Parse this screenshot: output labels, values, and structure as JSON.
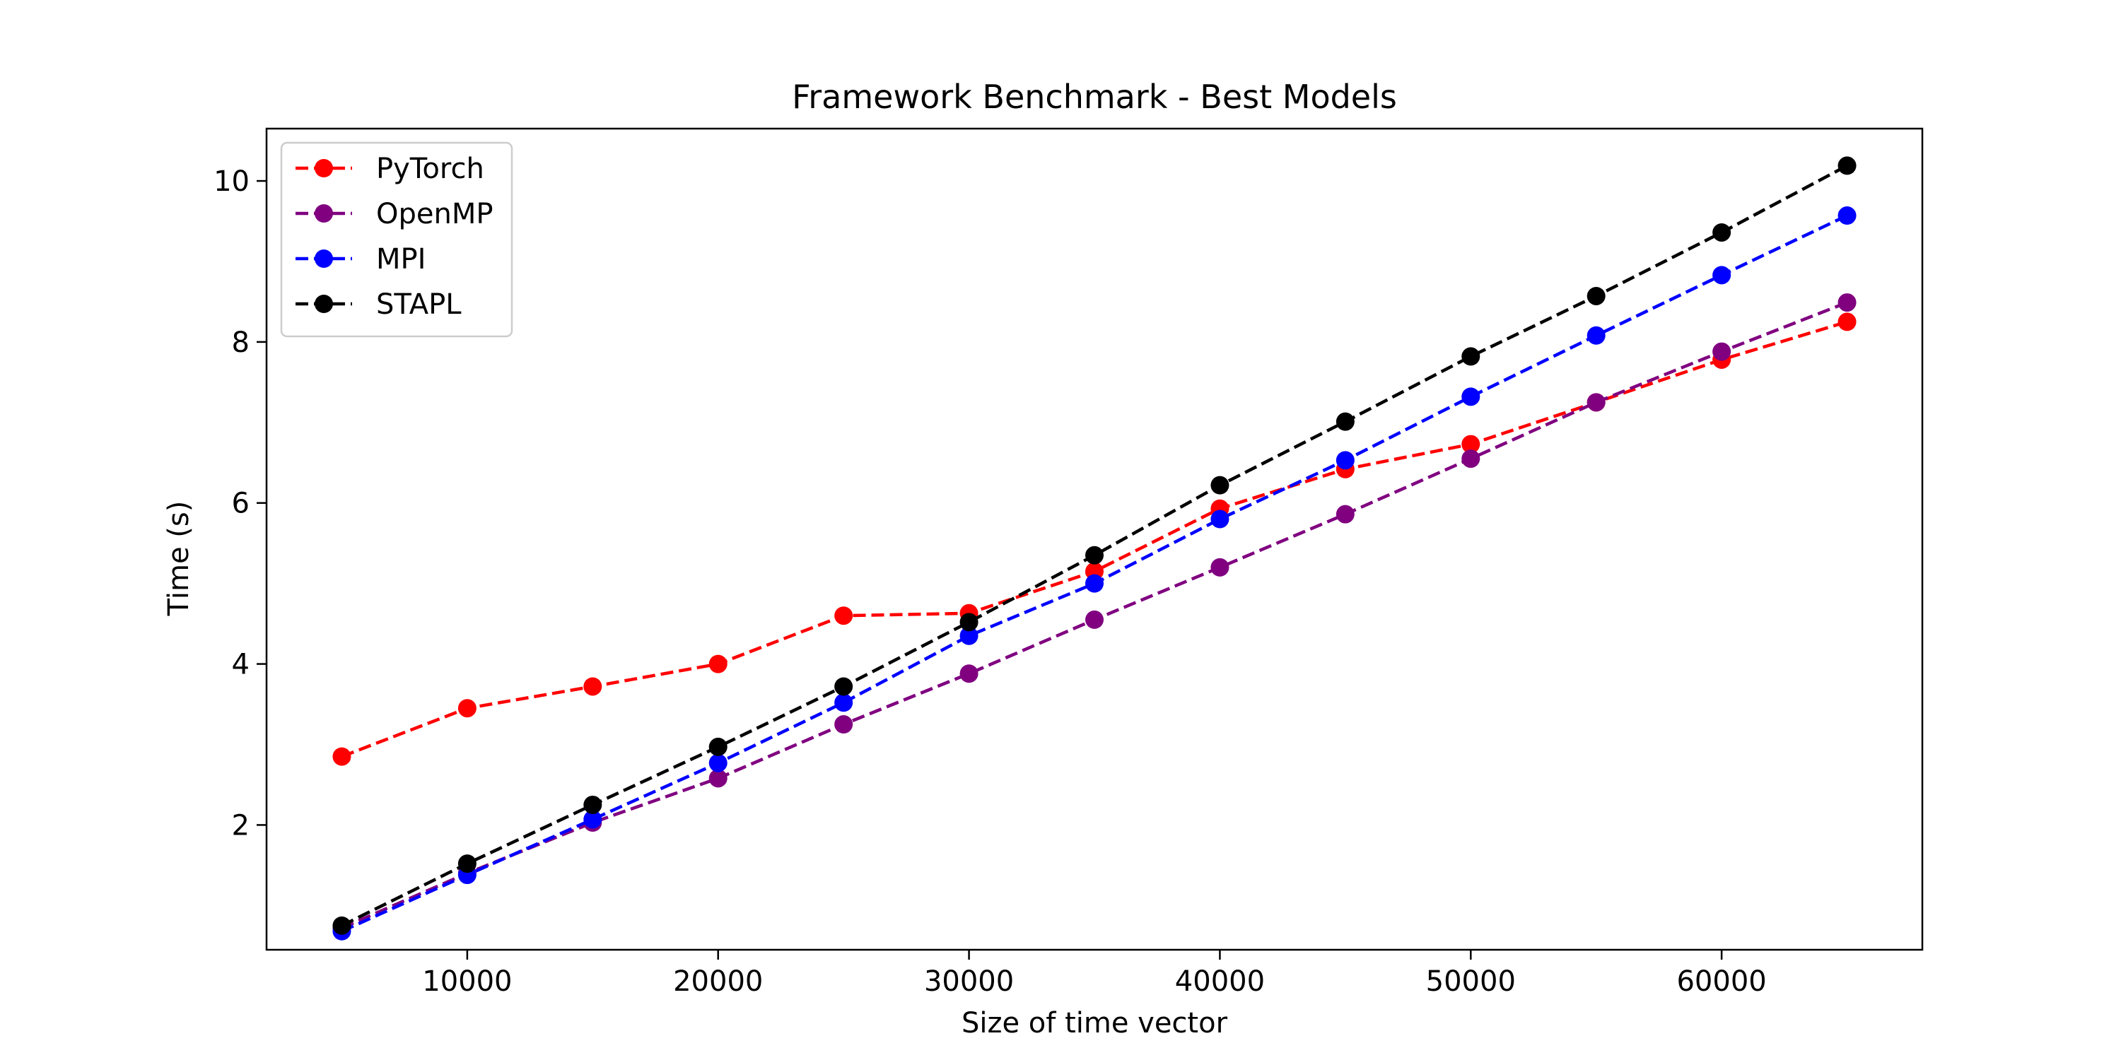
{
  "chart_data": {
    "type": "line",
    "title": "Framework Benchmark - Best Models",
    "xlabel": "Size of time vector",
    "ylabel": "Time (s)",
    "xlim": [
      2000,
      68000
    ],
    "ylim": [
      0.45,
      10.65
    ],
    "xticks": [
      10000,
      20000,
      30000,
      40000,
      50000,
      60000
    ],
    "yticks": [
      2,
      4,
      6,
      8,
      10
    ],
    "grid": false,
    "legend_position": "top-left",
    "x": [
      5000,
      10000,
      15000,
      20000,
      25000,
      30000,
      35000,
      40000,
      45000,
      50000,
      55000,
      60000,
      65000
    ],
    "series": [
      {
        "name": "PyTorch",
        "color": "#ff0000",
        "values": [
          2.85,
          3.45,
          3.72,
          4.0,
          4.6,
          4.63,
          5.15,
          5.93,
          6.42,
          6.73,
          7.25,
          7.78,
          8.25
        ]
      },
      {
        "name": "OpenMP",
        "color": "#800080",
        "values": [
          0.72,
          1.4,
          2.03,
          2.58,
          3.25,
          3.88,
          4.55,
          5.2,
          5.86,
          6.55,
          7.25,
          7.88,
          8.49
        ]
      },
      {
        "name": "MPI",
        "color": "#0000ff",
        "values": [
          0.68,
          1.38,
          2.07,
          2.77,
          3.52,
          4.35,
          5.0,
          5.8,
          6.53,
          7.32,
          8.08,
          8.83,
          9.57
        ]
      },
      {
        "name": "STAPL",
        "color": "#000000",
        "values": [
          0.75,
          1.52,
          2.25,
          2.97,
          3.72,
          4.52,
          5.35,
          6.22,
          7.01,
          7.82,
          8.57,
          9.36,
          10.19
        ]
      }
    ]
  }
}
